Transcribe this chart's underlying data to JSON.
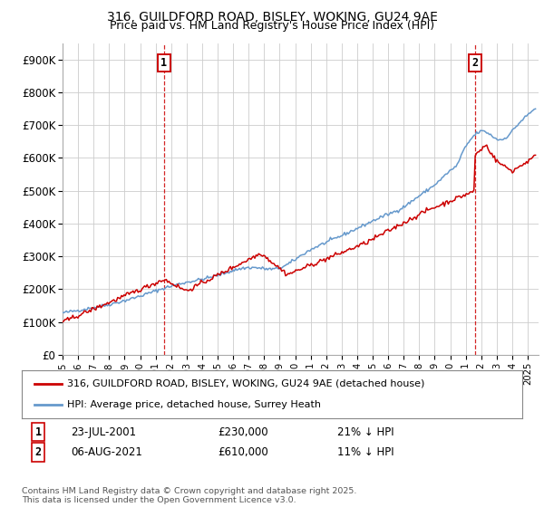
{
  "title_line1": "316, GUILDFORD ROAD, BISLEY, WOKING, GU24 9AE",
  "title_line2": "Price paid vs. HM Land Registry's House Price Index (HPI)",
  "legend_label_red": "316, GUILDFORD ROAD, BISLEY, WOKING, GU24 9AE (detached house)",
  "legend_label_blue": "HPI: Average price, detached house, Surrey Heath",
  "footer": "Contains HM Land Registry data © Crown copyright and database right 2025.\nThis data is licensed under the Open Government Licence v3.0.",
  "red_color": "#cc0000",
  "blue_color": "#6699cc",
  "grid_color": "#cccccc",
  "background_color": "#ffffff",
  "ylim": [
    0,
    950000
  ],
  "yticks": [
    0,
    100000,
    200000,
    300000,
    400000,
    500000,
    600000,
    700000,
    800000,
    900000
  ],
  "ytick_labels": [
    "£0",
    "£100K",
    "£200K",
    "£300K",
    "£400K",
    "£500K",
    "£600K",
    "£700K",
    "£800K",
    "£900K"
  ],
  "ann1_date": "23-JUL-2001",
  "ann1_price": "£230,000",
  "ann1_hpi": "21% ↓ HPI",
  "ann1_year": 2001.55,
  "ann2_date": "06-AUG-2021",
  "ann2_price": "£610,000",
  "ann2_hpi": "11% ↓ HPI",
  "ann2_year": 2021.6
}
